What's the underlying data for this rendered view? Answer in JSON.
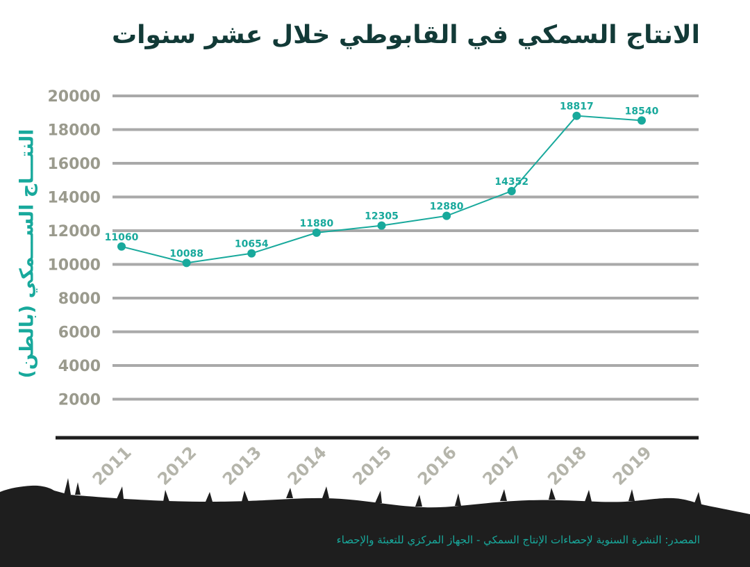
{
  "chart_data": {
    "type": "line",
    "title": "الانتاج السمكي في القابوطي خلال عشر سنوات",
    "ylabel": "النتـــاج الســـمكي (بالطن)",
    "xlabel": "",
    "categories": [
      "2011",
      "2012",
      "2013",
      "2014",
      "2015",
      "2016",
      "2017",
      "2018",
      "2019"
    ],
    "values": [
      11060,
      10088,
      10654,
      11880,
      12305,
      12880,
      14352,
      18817,
      18540
    ],
    "yticks": [
      2000,
      4000,
      6000,
      8000,
      10000,
      12000,
      14000,
      16000,
      18000,
      20000
    ],
    "ylim": [
      0,
      20000
    ],
    "grid": true,
    "legend": "none",
    "colors": {
      "line": "#18a99c",
      "grid": "#a9a9a9",
      "title": "#123a37",
      "ground": "#1e1e1e"
    }
  },
  "source": "المصدر: النشرة السنوية لإحصاءات الإنتاج السمكي - الجهاز المركزي للتعبئة والإحصاء"
}
